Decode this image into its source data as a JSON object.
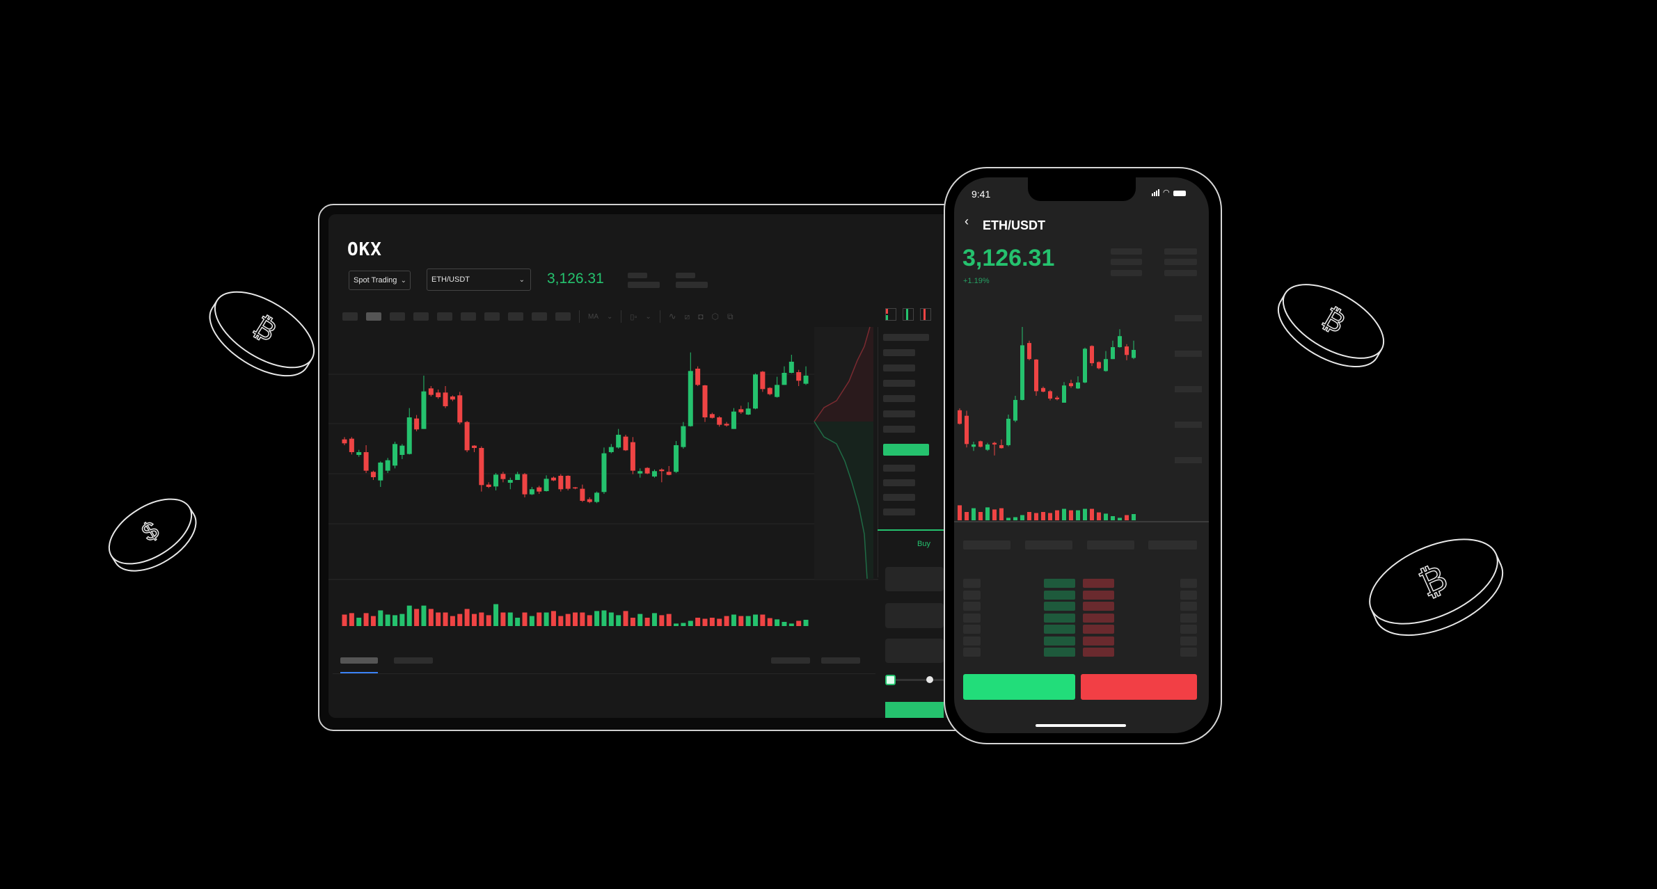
{
  "colors": {
    "up": "#25c26e",
    "down": "#ef4444",
    "up_button": "#22dd7a",
    "down_button": "#f23f45",
    "background": "#000000",
    "tablet_bg": "#181818",
    "phone_bg": "#222222"
  },
  "tablet": {
    "logo": "OKX",
    "market_type_select": "Spot Trading",
    "pair_select": "ETH/USDT",
    "last_price": "3,126.31",
    "toolbar": {
      "ma_label": "MA",
      "icons": [
        "line-indicator-icon",
        "ruler-icon",
        "camera-icon",
        "settings-icon",
        "fullscreen-icon"
      ]
    },
    "orderbook_view_icons": [
      "orderbook-both-icon",
      "orderbook-bids-icon",
      "orderbook-asks-icon"
    ],
    "order_form": {
      "side_tab": "Buy"
    }
  },
  "phone": {
    "status_time": "9:41",
    "status_icons": [
      "signal-icon",
      "wifi-icon",
      "battery-icon"
    ],
    "pair": "ETH/USDT",
    "last_price": "3,126.31",
    "change": "+1.19%"
  },
  "chart_data": {
    "type": "candlestick",
    "candles_ohlc": [
      [
        60.5,
        61.5,
        58,
        58.8
      ],
      [
        60.8,
        61.5,
        54,
        55.0
      ],
      [
        53.8,
        56,
        53,
        55.0
      ],
      [
        55.0,
        58,
        46,
        47.0
      ],
      [
        46.5,
        47,
        43,
        44.2
      ],
      [
        42.8,
        51,
        40,
        50.5
      ],
      [
        47.0,
        52.5,
        46,
        51.5
      ],
      [
        49.2,
        59.5,
        48,
        58.5
      ],
      [
        53.8,
        58.5,
        52,
        57.8
      ],
      [
        54.2,
        74,
        54,
        70.0
      ],
      [
        69.5,
        71,
        64,
        64.8
      ],
      [
        65.0,
        88,
        65,
        81.2
      ],
      [
        82.5,
        83.5,
        79,
        79.7
      ],
      [
        80.7,
        82,
        78,
        78.7
      ],
      [
        80.7,
        83.5,
        74,
        74.8
      ],
      [
        79.0,
        79.5,
        77,
        77.7
      ],
      [
        79.5,
        81,
        67,
        67.8
      ],
      [
        68.0,
        68.5,
        55,
        55.8
      ],
      [
        57.8,
        58,
        55,
        56.8
      ],
      [
        56.8,
        57.5,
        38,
        40.8
      ],
      [
        41.0,
        42,
        39.5,
        40.0
      ],
      [
        40.2,
        46,
        38.5,
        45.3
      ],
      [
        45.6,
        46.5,
        42,
        43.4
      ],
      [
        41.8,
        44,
        39,
        43.0
      ],
      [
        43.0,
        46.5,
        43,
        45.5
      ],
      [
        45.5,
        46,
        35.5,
        36.8
      ],
      [
        36.8,
        40,
        36.5,
        39.0
      ],
      [
        39.8,
        40.5,
        37,
        38.0
      ],
      [
        38.2,
        45,
        38,
        43.5
      ],
      [
        44.0,
        44.5,
        42.5,
        42.8
      ],
      [
        44.8,
        45.5,
        38,
        39.0
      ],
      [
        44.8,
        45,
        38.5,
        39.2
      ],
      [
        39.8,
        40,
        39,
        39.4
      ],
      [
        39.2,
        41,
        33.5,
        34.0
      ],
      [
        34.7,
        35.5,
        33,
        33.5
      ],
      [
        33.5,
        38,
        33,
        37.5
      ],
      [
        37.8,
        57,
        37,
        54.5
      ],
      [
        55.0,
        58.5,
        54.5,
        57.2
      ],
      [
        57.0,
        65,
        56.5,
        62.5
      ],
      [
        61.7,
        62.5,
        55.5,
        55.8
      ],
      [
        59.3,
        61.5,
        45.5,
        47.0
      ],
      [
        45.8,
        48,
        44,
        46.8
      ],
      [
        48.2,
        48.5,
        45.5,
        45.8
      ],
      [
        44.5,
        47.5,
        44,
        46.8
      ],
      [
        47.5,
        48,
        42,
        46.8
      ],
      [
        46.5,
        49,
        45,
        45.2
      ],
      [
        46.5,
        59.8,
        46,
        58.0
      ],
      [
        57.2,
        68,
        56.5,
        66.2
      ],
      [
        66.2,
        98,
        66,
        90.0
      ],
      [
        91.0,
        92,
        83.5,
        84.0
      ],
      [
        83.8,
        84,
        68,
        70.0
      ],
      [
        71.4,
        72,
        69.5,
        69.8
      ],
      [
        70.0,
        70.5,
        66,
        66.8
      ],
      [
        67.2,
        68,
        66,
        66.5
      ],
      [
        65.0,
        74,
        65,
        72.5
      ],
      [
        73.5,
        75,
        71.5,
        72.2
      ],
      [
        71.2,
        76.5,
        71,
        73.8
      ],
      [
        73.8,
        89,
        73.5,
        88.5
      ],
      [
        89.7,
        90,
        81,
        82.2
      ],
      [
        82.7,
        83,
        79.5,
        80.0
      ],
      [
        78.8,
        87.5,
        78.5,
        84.0
      ],
      [
        84.0,
        92,
        84,
        89.2
      ],
      [
        89.2,
        97,
        89,
        94.0
      ],
      [
        89.5,
        90.5,
        83.5,
        85.8
      ],
      [
        84.5,
        92,
        84,
        88.0
      ]
    ],
    "volumes": [
      55,
      62,
      40,
      62,
      48,
      75,
      55,
      52,
      58,
      98,
      82,
      98,
      82,
      65,
      65,
      48,
      58,
      82,
      58,
      65,
      52,
      105,
      65,
      65,
      40,
      65,
      48,
      65,
      65,
      72,
      48,
      58,
      65,
      65,
      52,
      72,
      75,
      65,
      52,
      72,
      40,
      58,
      40,
      62,
      52,
      58,
      12,
      15,
      25,
      40,
      35,
      40,
      35,
      48,
      55,
      48,
      48,
      55,
      55,
      38,
      32,
      20,
      12,
      25,
      30
    ],
    "grid": true,
    "axis_labels_shown": false
  }
}
